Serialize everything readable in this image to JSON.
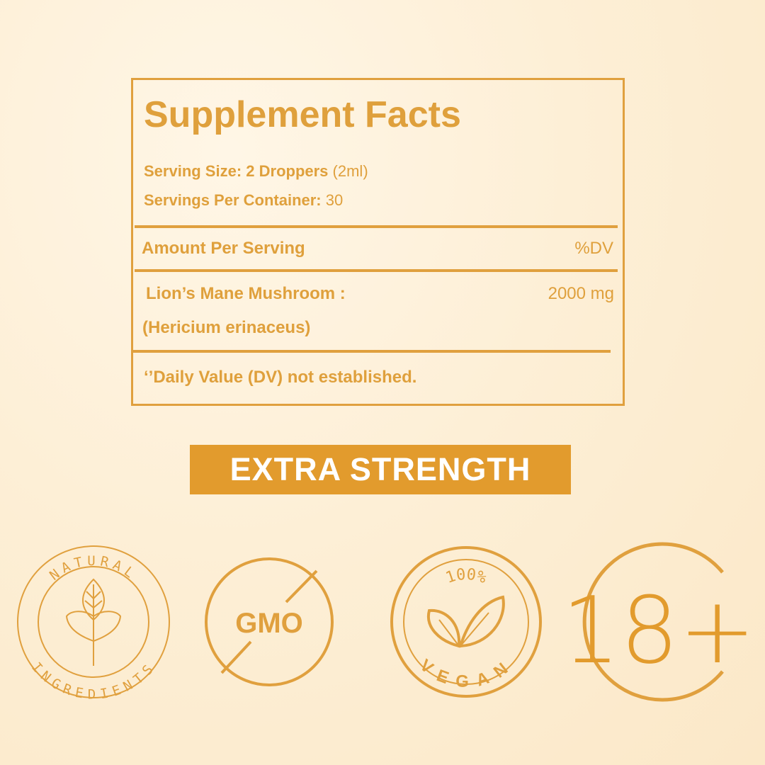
{
  "facts": {
    "title": "Supplement Facts",
    "serving_size_label": "Serving Size: 2 Droppers",
    "serving_size_value": "(2ml)",
    "servings_per_container_label": "Servings Per Container:",
    "servings_per_container_value": "30",
    "amount_header": "Amount Per Serving",
    "dv_header": "%DV",
    "ingredient_name": "Lion’s Mane Mushroom :",
    "ingredient_latin": "(Hericium erinaceus)",
    "ingredient_amount": "2000 mg",
    "footnote": "‘’Daily Value (DV) not established."
  },
  "banner": "EXTRA STRENGTH",
  "badges": {
    "natural_top": "NATURAL",
    "natural_bottom": "INGREDIENTS",
    "gmo": "GMO",
    "vegan_top": "100%",
    "vegan_bottom": "VEGAN",
    "age": "18+"
  },
  "colors": {
    "accent": "#e0a03e",
    "banner": "#e29b2d",
    "background": "#fdefd6"
  }
}
